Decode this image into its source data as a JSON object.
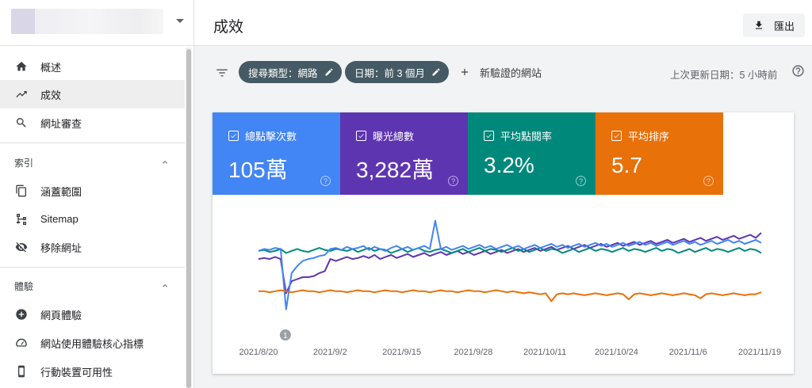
{
  "sidebar": {
    "items": [
      {
        "label": "概述",
        "icon": "home-icon"
      },
      {
        "label": "成效",
        "icon": "trending-up-icon"
      },
      {
        "label": "網址審查",
        "icon": "search-icon"
      }
    ],
    "index_section": {
      "title": "索引",
      "items": [
        {
          "label": "涵蓋範圍",
          "icon": "copy-icon"
        },
        {
          "label": "Sitemap",
          "icon": "sitemap-icon"
        },
        {
          "label": "移除網址",
          "icon": "visibility-off-icon"
        }
      ]
    },
    "experience_section": {
      "title": "體驗",
      "items": [
        {
          "label": "網頁體驗",
          "icon": "add-circle-icon"
        },
        {
          "label": "網站使用體驗核心指標",
          "icon": "speed-gauge-icon"
        },
        {
          "label": "行動裝置可用性",
          "icon": "smartphone-icon"
        }
      ]
    }
  },
  "header": {
    "title": "成效",
    "export_label": "匯出"
  },
  "filters": {
    "chips": [
      {
        "label": "搜尋類型：網路"
      },
      {
        "label": "日期：前 3 個月"
      }
    ],
    "add_label": "新驗證的網站",
    "last_updated": "上次更新日期：5 小時前"
  },
  "metrics": [
    {
      "label": "總點擊次數",
      "value": "105萬",
      "color": "#4285f4"
    },
    {
      "label": "曝光總數",
      "value": "3,282萬",
      "color": "#5e35b1"
    },
    {
      "label": "平均點閱率",
      "value": "3.2%",
      "color": "#00897b"
    },
    {
      "label": "平均排序",
      "value": "5.7",
      "color": "#e8710a"
    }
  ],
  "chart_data": {
    "type": "line",
    "x_tick_labels": [
      "2021/8/20",
      "2021/9/2",
      "2021/9/15",
      "2021/9/28",
      "2021/10/11",
      "2021/10/24",
      "2021/11/6",
      "2021/11/19"
    ],
    "annotation": "1",
    "x": [
      0,
      1,
      2,
      3,
      4,
      5,
      6,
      7,
      8,
      9,
      10,
      11,
      12,
      13,
      14,
      15,
      16,
      17,
      18,
      19,
      20,
      21,
      22,
      23,
      24,
      25,
      26,
      27,
      28,
      29,
      30,
      31,
      32,
      33,
      34,
      35,
      36,
      37,
      38,
      39,
      40,
      41,
      42,
      43,
      44,
      45,
      46,
      47,
      48,
      49,
      50,
      51,
      52,
      53,
      54,
      55,
      56,
      57,
      58,
      59,
      60,
      61,
      62,
      63,
      64,
      65,
      66,
      67,
      68,
      69,
      70,
      71,
      72,
      73,
      74,
      75,
      76,
      77,
      78,
      79,
      80,
      81,
      82,
      83,
      84,
      85,
      86,
      87,
      88,
      89,
      90,
      91
    ],
    "series": [
      {
        "color": "#5e35b1",
        "values": [
          62,
          63,
          62,
          64,
          62,
          28,
          40,
          42,
          44,
          44,
          45,
          48,
          50,
          62,
          60,
          62,
          64,
          62,
          63,
          65,
          63,
          66,
          62,
          64,
          66,
          63,
          65,
          67,
          64,
          66,
          68,
          65,
          67,
          69,
          66,
          68,
          70,
          67,
          69,
          66,
          68,
          70,
          67,
          69,
          71,
          68,
          70,
          72,
          69,
          71,
          73,
          70,
          72,
          74,
          71,
          73,
          75,
          72,
          74,
          76,
          73,
          75,
          77,
          74,
          76,
          78,
          75,
          77,
          79,
          76,
          78,
          80,
          77,
          79,
          81,
          78,
          80,
          82,
          79,
          81,
          83,
          80,
          82,
          84,
          81,
          83,
          85,
          82,
          84,
          86,
          83,
          88
        ]
      },
      {
        "color": "#00897b",
        "values": [
          70,
          71,
          69,
          70,
          72,
          68,
          70,
          72,
          70,
          69,
          71,
          73,
          71,
          70,
          72,
          71,
          70,
          72,
          69,
          71,
          73,
          70,
          72,
          71,
          68,
          70,
          72,
          69,
          71,
          73,
          70,
          69,
          71,
          72,
          70,
          68,
          70,
          72,
          69,
          71,
          73,
          70,
          72,
          71,
          69,
          71,
          73,
          70,
          72,
          69,
          71,
          73,
          70,
          72,
          71,
          68,
          70,
          72,
          69,
          71,
          73,
          70,
          72,
          71,
          69,
          71,
          73,
          70,
          72,
          71,
          69,
          71,
          73,
          70,
          72,
          71,
          68,
          70,
          72,
          69,
          71,
          73,
          70,
          72,
          71,
          69,
          71,
          73,
          70,
          72,
          71,
          68
        ]
      },
      {
        "color": "#4285f4",
        "values": [
          70,
          72,
          71,
          73,
          72,
          12,
          48,
          55,
          60,
          62,
          63,
          65,
          66,
          72,
          73,
          71,
          74,
          72,
          73,
          75,
          71,
          74,
          72,
          70,
          73,
          75,
          72,
          74,
          71,
          73,
          75,
          72,
          100,
          72,
          74,
          71,
          73,
          75,
          72,
          74,
          76,
          73,
          75,
          72,
          74,
          76,
          73,
          75,
          72,
          74,
          76,
          73,
          75,
          77,
          74,
          76,
          73,
          75,
          77,
          74,
          76,
          78,
          75,
          77,
          74,
          76,
          78,
          75,
          77,
          79,
          76,
          78,
          75,
          77,
          79,
          76,
          78,
          80,
          77,
          79,
          76,
          78,
          80,
          77,
          79,
          81,
          78,
          80,
          77,
          79,
          81,
          78
        ]
      },
      {
        "color": "#e8710a",
        "values": [
          30,
          30,
          29,
          30,
          31,
          30,
          29,
          30,
          31,
          30,
          30,
          29,
          30,
          31,
          30,
          30,
          29,
          30,
          31,
          30,
          30,
          29,
          30,
          31,
          30,
          30,
          29,
          30,
          31,
          30,
          30,
          29,
          30,
          31,
          30,
          30,
          29,
          30,
          31,
          30,
          30,
          29,
          30,
          31,
          30,
          29,
          30,
          29,
          28,
          29,
          28,
          27,
          28,
          20,
          27,
          28,
          27,
          28,
          27,
          26,
          27,
          28,
          27,
          26,
          27,
          28,
          27,
          22,
          27,
          28,
          27,
          26,
          27,
          28,
          27,
          26,
          27,
          28,
          27,
          26,
          23,
          27,
          28,
          27,
          26,
          27,
          28,
          27,
          26,
          27,
          27,
          29
        ]
      }
    ],
    "ylim": [
      0,
      110
    ]
  }
}
